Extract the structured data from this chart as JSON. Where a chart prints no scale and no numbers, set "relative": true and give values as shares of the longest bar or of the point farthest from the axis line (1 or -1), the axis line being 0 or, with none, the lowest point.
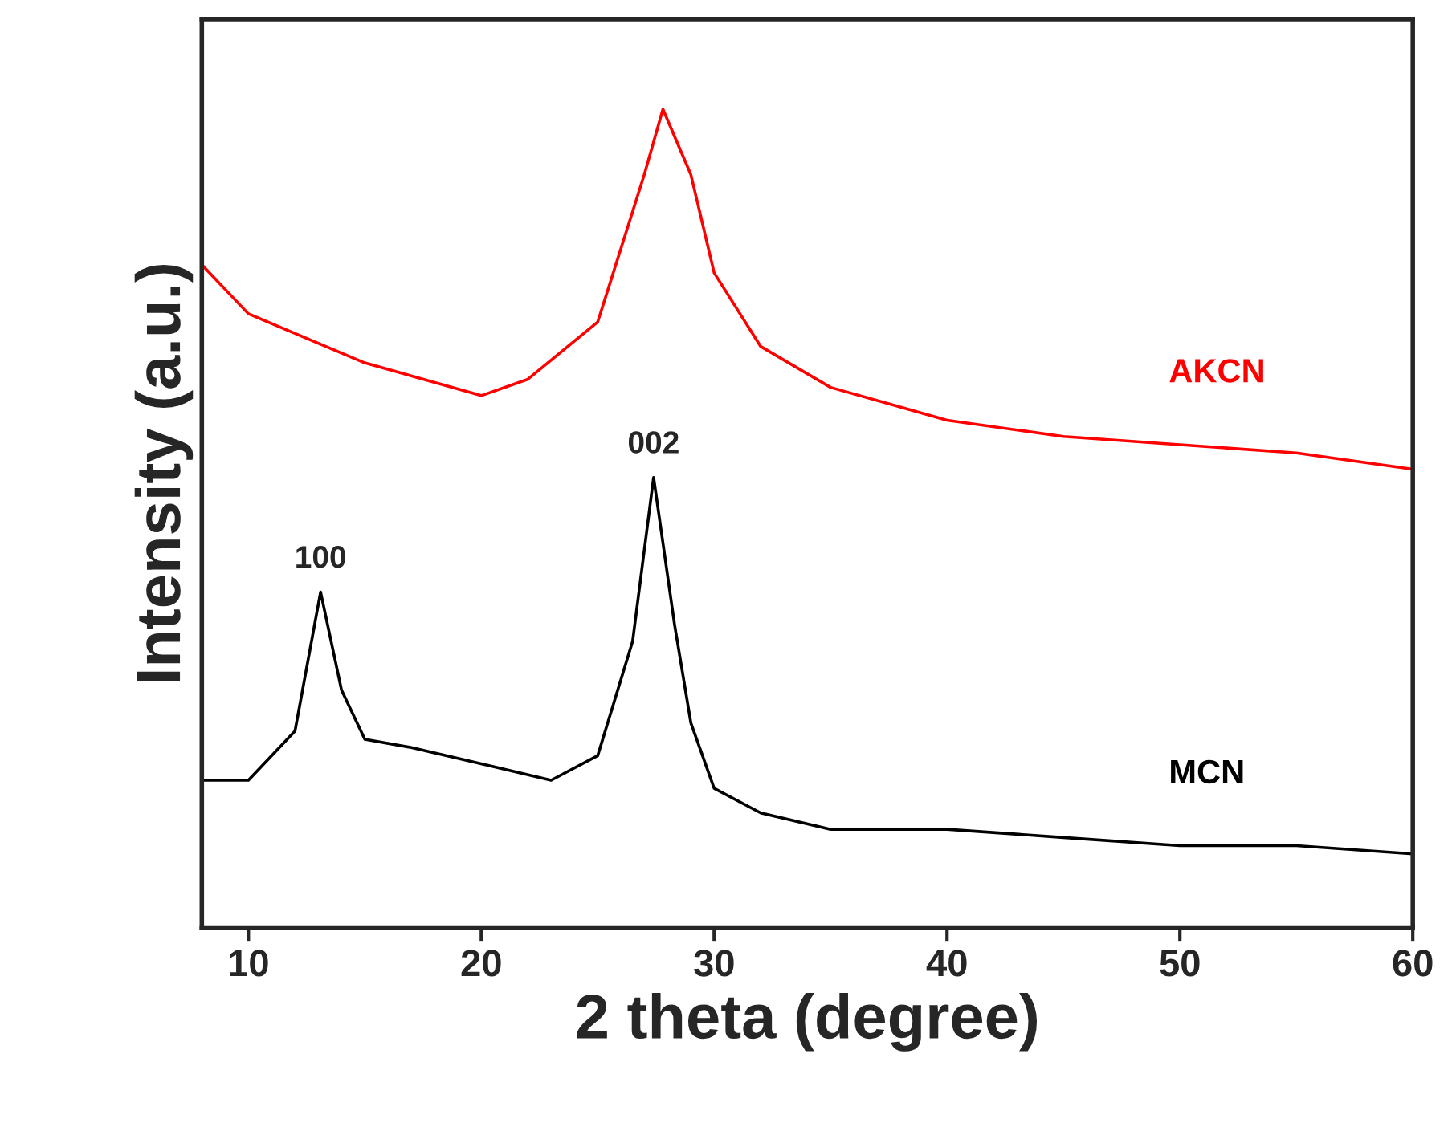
{
  "chart_data": {
    "type": "line",
    "relative": true,
    "xlabel": "2 theta (degree)",
    "ylabel": "Intensity (a.u.)",
    "xlim": [
      8,
      60
    ],
    "xticks": [
      10,
      20,
      30,
      40,
      50,
      60
    ],
    "tick_labels": "x",
    "grid": false,
    "legend": false,
    "marker": "none",
    "line_style": "solid",
    "annotations": [
      {
        "text": "100",
        "x": 13.1,
        "y": 0.41
      },
      {
        "text": "002",
        "x": 27.4,
        "y": 0.55
      }
    ],
    "series": [
      {
        "name": "AKCN",
        "color": "#ff0000",
        "x": [
          8,
          10,
          15,
          20,
          22,
          25,
          27,
          27.8,
          29,
          30,
          32,
          35,
          40,
          45,
          50,
          55,
          60
        ],
        "values": [
          0.81,
          0.75,
          0.69,
          0.65,
          0.67,
          0.74,
          0.92,
          1.0,
          0.92,
          0.8,
          0.71,
          0.66,
          0.62,
          0.6,
          0.59,
          0.58,
          0.56
        ]
      },
      {
        "name": "MCN",
        "color": "#000000",
        "x": [
          8,
          10,
          12,
          13.1,
          14,
          15,
          17,
          20,
          23,
          25,
          26.5,
          27.4,
          28.3,
          29,
          30,
          32,
          35,
          40,
          45,
          50,
          55,
          60
        ],
        "values": [
          0.18,
          0.18,
          0.24,
          0.41,
          0.29,
          0.23,
          0.22,
          0.2,
          0.18,
          0.21,
          0.35,
          0.55,
          0.37,
          0.25,
          0.17,
          0.14,
          0.12,
          0.12,
          0.11,
          0.1,
          0.1,
          0.09
        ]
      }
    ]
  }
}
